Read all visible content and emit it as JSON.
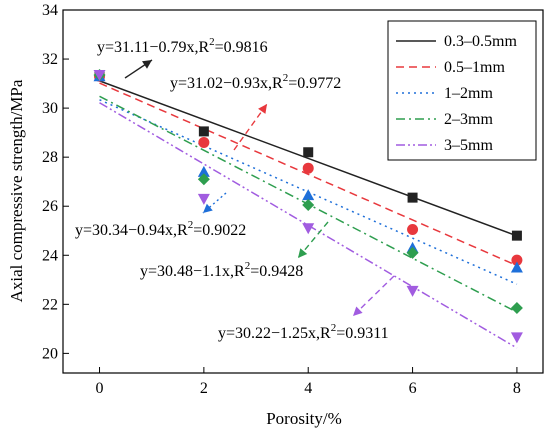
{
  "chart_data": {
    "type": "scatter",
    "xlabel": "Porosity/%",
    "ylabel": "Axial compressive strength/MPa",
    "xlim": [
      -0.7,
      8.5
    ],
    "ylim": [
      19.2,
      34
    ],
    "xticks": [
      0,
      2,
      4,
      6,
      8
    ],
    "yticks": [
      20,
      22,
      24,
      26,
      28,
      30,
      32,
      34
    ],
    "grid": false,
    "legend_position": "top-right",
    "series": [
      {
        "name": "0.3–0.5mm",
        "color": "#222222",
        "marker": "square",
        "line": "solid",
        "x": [
          0,
          2,
          4,
          6,
          8
        ],
        "values": [
          31.35,
          29.05,
          28.2,
          26.35,
          24.8
        ],
        "fit": {
          "intercept": 31.11,
          "slope": -0.79
        },
        "equation": {
          "main": "y=31.11−0.79x,R",
          "sup": "2",
          "tail": "=0.9816"
        }
      },
      {
        "name": "0.5–1mm",
        "color": "#e8383d",
        "marker": "circle",
        "line": "dash",
        "x": [
          0,
          2,
          4,
          6,
          8
        ],
        "values": [
          31.3,
          28.6,
          27.55,
          25.05,
          23.8
        ],
        "fit": {
          "intercept": 31.02,
          "slope": -0.93
        },
        "equation": {
          "main": "y=31.02−0.93x,R",
          "sup": "2",
          "tail": "=0.9772"
        }
      },
      {
        "name": "1–2mm",
        "color": "#1e6fd9",
        "marker": "triangle",
        "line": "dot",
        "x": [
          0,
          2,
          4,
          6,
          8
        ],
        "values": [
          31.3,
          27.4,
          26.45,
          24.3,
          23.5
        ],
        "fit": {
          "intercept": 30.34,
          "slope": -0.94
        },
        "equation": {
          "main": "y=30.34−0.94x,R",
          "sup": "2",
          "tail": "=0.9022"
        }
      },
      {
        "name": "2–3mm",
        "color": "#2e9e4f",
        "marker": "diamond",
        "line": "dashdot",
        "x": [
          0,
          2,
          4,
          6,
          8
        ],
        "values": [
          31.35,
          27.1,
          26.05,
          24.1,
          21.85
        ],
        "fit": {
          "intercept": 30.48,
          "slope": -1.1
        },
        "equation": {
          "main": "y=30.48−1.1x,R",
          "sup": "2",
          "tail": "=0.9428"
        }
      },
      {
        "name": "3–5mm",
        "color": "#a15ce0",
        "marker": "triangle-down",
        "line": "dashdotdot",
        "x": [
          0,
          2,
          4,
          6,
          8
        ],
        "values": [
          31.35,
          26.3,
          25.1,
          22.55,
          20.65
        ],
        "fit": {
          "intercept": 30.22,
          "slope": -1.25
        },
        "equation": {
          "main": "y=30.22−1.25x,R",
          "sup": "2",
          "tail": "=0.9311"
        }
      }
    ]
  }
}
